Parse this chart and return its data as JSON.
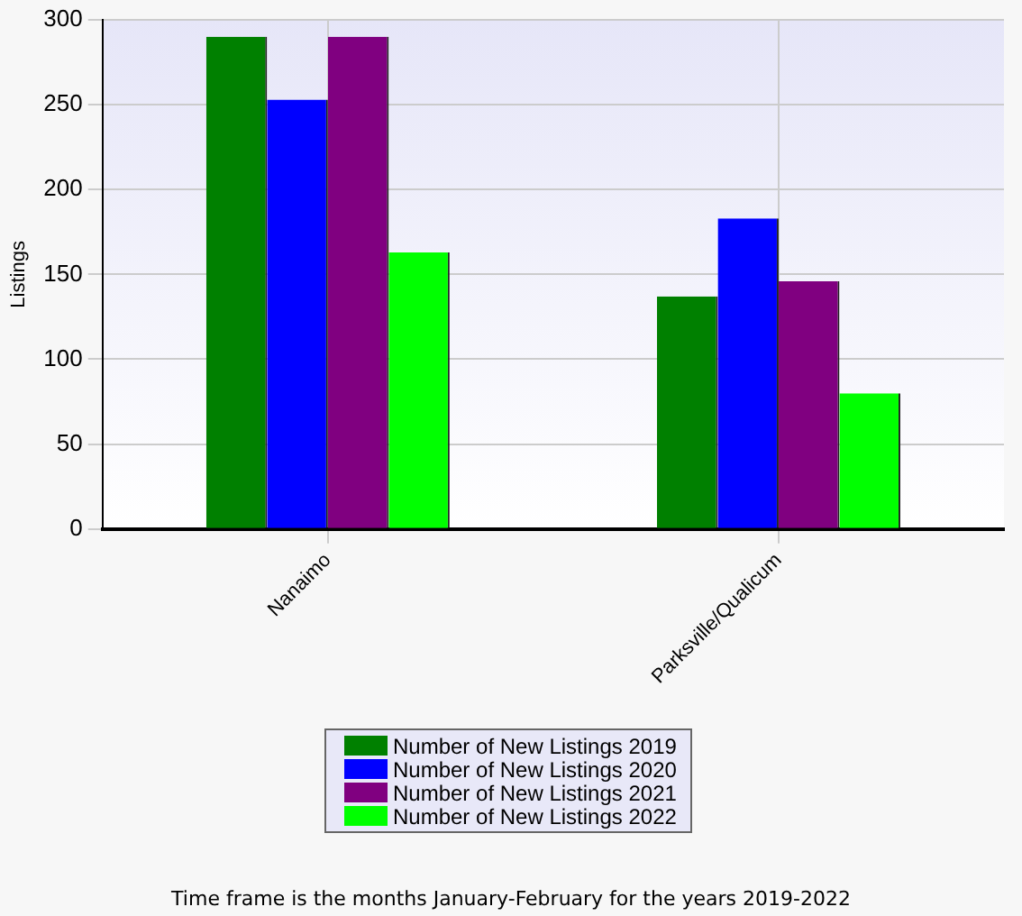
{
  "chart_data": {
    "type": "bar",
    "ylabel": "Listings",
    "categories": [
      "Nanaimo",
      "Parksville/Qualicum"
    ],
    "series": [
      {
        "name": "Number of New Listings 2019",
        "color": "#008000",
        "values": [
          290,
          137
        ]
      },
      {
        "name": "Number of New Listings 2020",
        "color": "#0000ff",
        "values": [
          253,
          183
        ]
      },
      {
        "name": "Number of New Listings 2021",
        "color": "#800080",
        "values": [
          290,
          146
        ]
      },
      {
        "name": "Number of New Listings 2022",
        "color": "#00ff00",
        "values": [
          163,
          80
        ]
      }
    ],
    "ylim": [
      0,
      300
    ],
    "yticks": [
      0,
      50,
      100,
      150,
      200,
      250,
      300
    ],
    "grid": true,
    "legend": "bottom",
    "annotations": [
      "Time frame is the months January-February for the years 2019-2022"
    ]
  }
}
